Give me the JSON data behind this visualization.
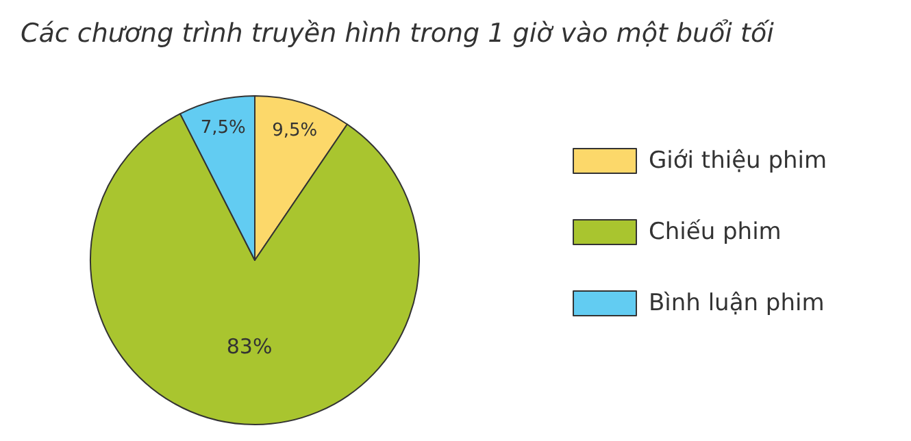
{
  "chart_data": {
    "type": "pie",
    "title": "Các chương trình truyền hình trong 1 giờ vào một buổi tối",
    "categories": [
      "Giới thiệu phim",
      "Chiếu phim",
      "Bình luận phim"
    ],
    "values": [
      9.5,
      83,
      7.5
    ],
    "value_labels": [
      "9,5%",
      "83%",
      "7,5%"
    ],
    "colors": [
      "#fcd86a",
      "#a9c52f",
      "#62ccf2"
    ],
    "legend": "right"
  }
}
